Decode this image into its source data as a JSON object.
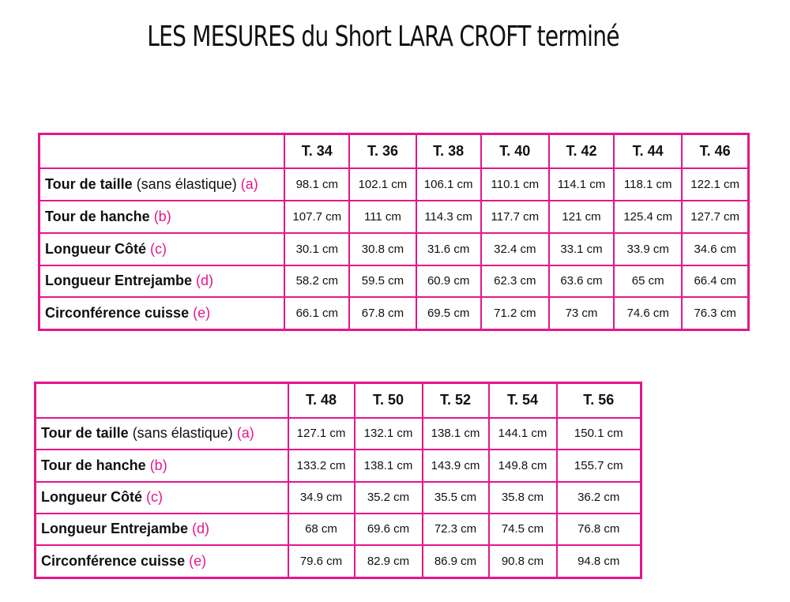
{
  "title": "LES MESURES du Short LARA CROFT terminé",
  "tables": [
    {
      "sizes": [
        "T. 34",
        "T. 36",
        "T. 38",
        "T. 40",
        "T. 42",
        "T. 44",
        "T. 46"
      ],
      "rows": [
        {
          "name": "Tour de taille",
          "note": " (sans élastique)",
          "letter": " (a)",
          "values": [
            "98.1 cm",
            "102.1 cm",
            "106.1 cm",
            "110.1 cm",
            "114.1 cm",
            "118.1 cm",
            "122.1 cm"
          ]
        },
        {
          "name": "Tour de hanche",
          "note": "",
          "letter": " (b)",
          "values": [
            "107.7 cm",
            "111 cm",
            "114.3 cm",
            "117.7 cm",
            "121 cm",
            "125.4 cm",
            "127.7 cm"
          ]
        },
        {
          "name": "Longueur Côté",
          "note": "",
          "letter": " (c)",
          "values": [
            "30.1 cm",
            "30.8 cm",
            "31.6 cm",
            "32.4 cm",
            "33.1 cm",
            "33.9 cm",
            "34.6 cm"
          ]
        },
        {
          "name": "Longueur Entrejambe",
          "note": "",
          "letter": " (d)",
          "values": [
            "58.2 cm",
            "59.5 cm",
            "60.9 cm",
            "62.3 cm",
            "63.6 cm",
            "65 cm",
            "66.4 cm"
          ]
        },
        {
          "name": "Circonférence cuisse",
          "note": "",
          "letter": "  (e)",
          "values": [
            "66.1 cm",
            "67.8 cm",
            "69.5 cm",
            "71.2 cm",
            "73 cm",
            "74.6 cm",
            "76.3 cm"
          ]
        }
      ]
    },
    {
      "sizes": [
        "T. 48",
        "T. 50",
        "T. 52",
        "T. 54",
        "T. 56"
      ],
      "rows": [
        {
          "name": "Tour de taille",
          "note": " (sans élastique)",
          "letter": " (a)",
          "values": [
            "127.1 cm",
            "132.1 cm",
            "138.1 cm",
            "144.1 cm",
            "150.1 cm"
          ]
        },
        {
          "name": "Tour de hanche",
          "note": "",
          "letter": " (b)",
          "values": [
            "133.2 cm",
            "138.1 cm",
            "143.9 cm",
            "149.8 cm",
            "155.7 cm"
          ]
        },
        {
          "name": "Longueur Côté",
          "note": "",
          "letter": " (c)",
          "values": [
            "34.9 cm",
            "35.2 cm",
            "35.5 cm",
            "35.8 cm",
            "36.2 cm"
          ]
        },
        {
          "name": "Longueur Entrejambe",
          "note": "",
          "letter": " (d)",
          "values": [
            "68 cm",
            "69.6 cm",
            "72.3 cm",
            "74.5 cm",
            "76.8 cm"
          ]
        },
        {
          "name": "Circonférence cuisse",
          "note": "",
          "letter": "  (e)",
          "values": [
            "79.6 cm",
            "82.9 cm",
            "86.9 cm",
            "90.8 cm",
            "94.8 cm"
          ]
        }
      ]
    }
  ],
  "colors": {
    "border": "#e6158c",
    "letter": "#e6158c",
    "text": "#111111"
  }
}
